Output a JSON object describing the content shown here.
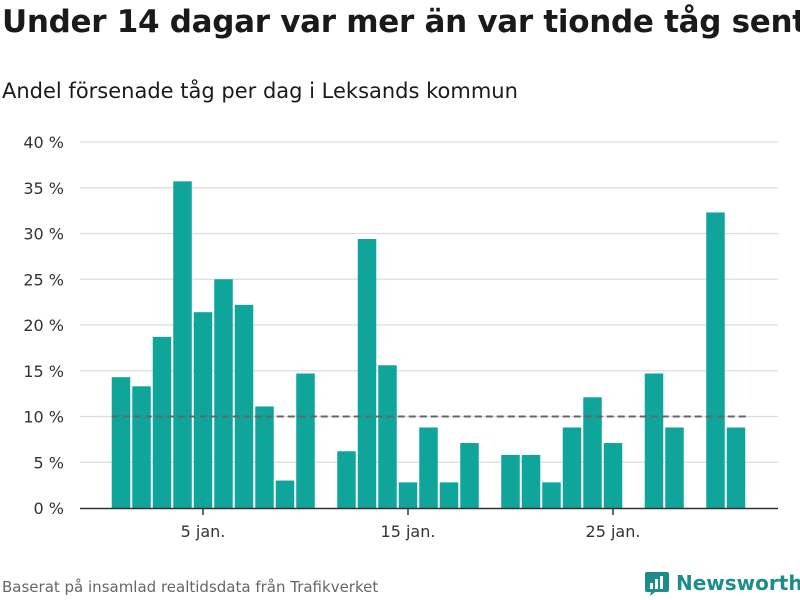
{
  "title": "Under 14 dagar var mer än var tionde tåg sent",
  "subtitle": "Andel försenade tåg per dag i Leksands kommun",
  "footer": "Baserat på insamlad realtidsdata från Trafikverket",
  "brand": {
    "name": "Newsworthy",
    "icon": "bar-chart-logo-icon",
    "color": "#1c8d8a"
  },
  "chart_data": {
    "type": "bar",
    "title": "Under 14 dagar var mer än var tionde tåg sent",
    "subtitle": "Andel försenade tåg per dag i Leksands kommun",
    "xlabel": "",
    "ylabel": "",
    "days": [
      1,
      2,
      3,
      4,
      5,
      6,
      7,
      8,
      9,
      10,
      11,
      12,
      13,
      14,
      15,
      16,
      17,
      18,
      19,
      20,
      21,
      22,
      23,
      24,
      25,
      26,
      27,
      28,
      29,
      30,
      31,
      32
    ],
    "values": [
      14.3,
      13.3,
      18.7,
      35.7,
      21.4,
      25.0,
      22.2,
      11.1,
      3.0,
      14.7,
      null,
      6.2,
      29.4,
      15.6,
      2.8,
      8.8,
      2.8,
      7.1,
      null,
      5.8,
      5.8,
      2.8,
      8.8,
      12.1,
      7.1,
      null,
      14.7,
      8.8,
      null,
      32.3,
      8.8,
      null
    ],
    "ylim": [
      0,
      40
    ],
    "yticks": [
      0,
      5,
      10,
      15,
      20,
      25,
      30,
      35,
      40
    ],
    "ytick_labels": [
      "0 %",
      "5 %",
      "10 %",
      "15 %",
      "20 %",
      "25 %",
      "30 %",
      "35 %",
      "40 %"
    ],
    "xticks": [
      5,
      15,
      25
    ],
    "xtick_labels": [
      "5 jan.",
      "15 jan.",
      "25 jan."
    ],
    "reference_line": 10,
    "grid": true,
    "colors": {
      "bar": "#0fa59b",
      "grid": "#dddddd",
      "reference": "#666666",
      "axis": "#333333"
    }
  }
}
